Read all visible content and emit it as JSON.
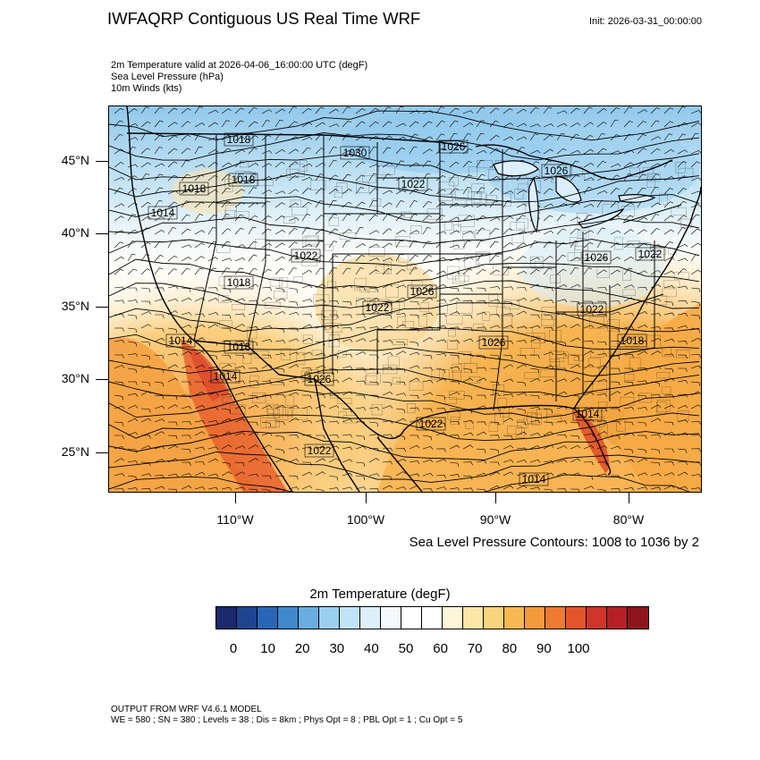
{
  "header": {
    "title": "IWFAQRP Contiguous US Real Time WRF",
    "init": "Init: 2026-03-31_00:00:00"
  },
  "subtitles": [
    "2m Temperature valid at 2026-04-06_16:00:00 UTC   (degF)",
    "Sea Level Pressure   (hPa)",
    "10m Winds   (kts)"
  ],
  "map": {
    "lat_labels": [
      "45°N",
      "40°N",
      "35°N",
      "30°N",
      "25°N"
    ],
    "lon_labels": [
      "110°W",
      "100°W",
      "90°W",
      "80°W"
    ],
    "pressure_labels": [
      "1018",
      "1030",
      "1026",
      "1026",
      "1022",
      "1018",
      "1018",
      "1014",
      "1022",
      "1026",
      "1018",
      "1022",
      "1026",
      "1022",
      "1022",
      "1026",
      "1014",
      "1018",
      "1014",
      "1026",
      "1022",
      "1018",
      "1022",
      "1014",
      "1014"
    ],
    "contour_note": "Sea Level Pressure Contours: 1008 to 1036 by 2"
  },
  "colorbar": {
    "title": "2m Temperature  (degF)",
    "colors": [
      "#1a2a6c",
      "#1f4591",
      "#2a66b8",
      "#3f89cc",
      "#68aede",
      "#9bcff0",
      "#c0e3f7",
      "#ddf0fa",
      "#f3f9fc",
      "#ffffff",
      "#ffffff",
      "#fff5d9",
      "#fde7a8",
      "#fbd37b",
      "#f9b853",
      "#f59a3c",
      "#ef7a32",
      "#e4552c",
      "#cf3528",
      "#b61f26",
      "#8e1420"
    ],
    "labels": [
      "0",
      "10",
      "20",
      "30",
      "40",
      "50",
      "60",
      "70",
      "80",
      "90",
      "100"
    ]
  },
  "footer": {
    "line1": "OUTPUT FROM WRF V4.6.1 MODEL",
    "line2": "WE = 580 ; SN = 380 ; Levels = 38 ; Dis = 8km ; Phys Opt = 8 ; PBL Opt = 1 ; Cu Opt = 5"
  }
}
